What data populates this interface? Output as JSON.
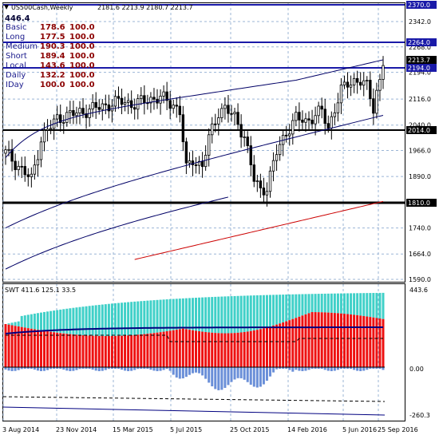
{
  "window": {
    "symbol": "US500Cash,Weekly",
    "ohlc": "2181.6 2213.9 2180.7 2213.7",
    "top_value": "446.4"
  },
  "indicator_legend": [
    {
      "label": "Basic",
      "v1": "178.6",
      "v2": "100.0"
    },
    {
      "label": "Long",
      "v1": "177.5",
      "v2": "100.0"
    },
    {
      "label": "Medium",
      "v1": "190.3",
      "v2": "100.0"
    },
    {
      "label": "Short",
      "v1": "189.4",
      "v2": "100.0"
    },
    {
      "label": "Local",
      "v1": "143.6",
      "v2": "100.0"
    },
    {
      "label": "Daily",
      "v1": "132.2",
      "v2": "100.0"
    },
    {
      "label": "IDay",
      "v1": "100.0",
      "v2": "100.0"
    }
  ],
  "price_axis": [
    "2342.0",
    "2268.0",
    "2194.0",
    "2116.0",
    "2040.0",
    "1966.0",
    "1890.0",
    "1814.0",
    "1740.0",
    "1664.0",
    "1590.0"
  ],
  "levels": [
    {
      "label": "2370.0",
      "color": "#1a1aa8"
    },
    {
      "label": "2264.0",
      "color": "#1a1aa8"
    },
    {
      "label": "2213.7",
      "color": "#000000"
    },
    {
      "label": "2194.0",
      "color": "#1a1aa8"
    },
    {
      "label": "2014.0",
      "color": "#000000"
    },
    {
      "label": "1810.0",
      "color": "#000000"
    }
  ],
  "indicator": {
    "header": "SWT 411.6 125.1 33.5",
    "axis": [
      "443.6",
      "0.00",
      "-260.3"
    ]
  },
  "time_axis": [
    "3 Aug 2014",
    "23 Nov 2014",
    "15 Mar 2015",
    "5 Jul 2015",
    "25 Oct 2015",
    "14 Feb 2016",
    "5 Jun 2016",
    "25 Sep 2016"
  ],
  "colors": {
    "grid": "#9bb5d6",
    "level_blue": "#1a1aa8",
    "level_black": "#000000",
    "ma_blue": "#000066",
    "ma_red": "#cc0000",
    "hist_red": "#ee1111",
    "hist_cyan": "#40d0c8",
    "hist_blue": "#6a8fd8"
  },
  "icons": {
    "scroll_arrow": "triangle-down-icon"
  }
}
